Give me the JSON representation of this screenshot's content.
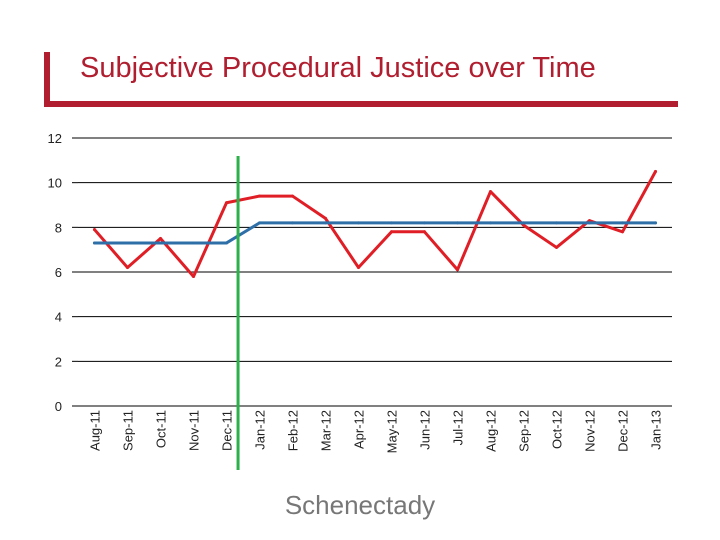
{
  "title": "Subjective Procedural Justice over Time",
  "caption": "Schenectady",
  "colors": {
    "title": "#b01e2f",
    "observed": "#e01e26",
    "baseline": "#2e6fa8",
    "intervention": "#2bb04a",
    "grid": "#000000"
  },
  "chart_data": {
    "type": "line",
    "title": "Subjective Procedural Justice over Time",
    "xlabel": "",
    "ylabel": "",
    "ylim": [
      0,
      12
    ],
    "yticks": [
      "0",
      "2",
      "4",
      "6",
      "8",
      "10",
      "12"
    ],
    "grid": true,
    "legend": "none",
    "categories": [
      "Aug-11",
      "Sep-11",
      "Oct-11",
      "Nov-11",
      "Dec-11",
      "Jan-12",
      "Feb-12",
      "Mar-12",
      "Apr-12",
      "May-12",
      "Jun-12",
      "Jul-12",
      "Aug-12",
      "Sep-12",
      "Oct-12",
      "Nov-12",
      "Dec-12",
      "Jan-13"
    ],
    "series": [
      {
        "color": "#e01e26",
        "values": [
          7.9,
          6.2,
          7.5,
          5.8,
          9.1,
          9.4,
          9.4,
          8.4,
          6.2,
          7.8,
          7.8,
          6.1,
          9.6,
          8.1,
          7.1,
          8.3,
          7.8,
          10.5
        ]
      },
      {
        "color": "#2e6fa8",
        "values": [
          7.3,
          7.3,
          7.3,
          7.3,
          7.3,
          8.2,
          8.2,
          8.2,
          8.2,
          8.2,
          8.2,
          8.2,
          8.2,
          8.2,
          8.2,
          8.2,
          8.2,
          8.2
        ]
      }
    ],
    "annotations": [
      {
        "type": "vertical-line",
        "between": [
          "Dec-11",
          "Jan-12"
        ],
        "color": "#2bb04a"
      }
    ]
  }
}
